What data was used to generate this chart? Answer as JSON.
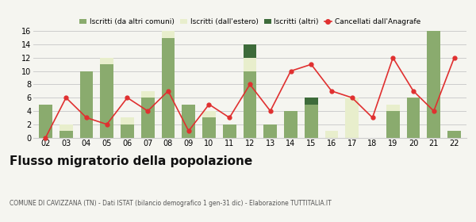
{
  "years": [
    "02",
    "03",
    "04",
    "05",
    "06",
    "07",
    "08",
    "09",
    "10",
    "11",
    "12",
    "13",
    "14",
    "15",
    "16",
    "17",
    "18",
    "19",
    "20",
    "21",
    "22"
  ],
  "iscritti_altri_comuni": [
    5,
    1,
    10,
    11,
    2,
    6,
    15,
    5,
    3,
    2,
    10,
    2,
    4,
    5,
    0,
    0,
    0,
    4,
    6,
    16,
    1
  ],
  "iscritti_estero": [
    0,
    1,
    0,
    1,
    1,
    1,
    1,
    0,
    1,
    0,
    2,
    0,
    0,
    0,
    1,
    6,
    0,
    1,
    0,
    0,
    0
  ],
  "iscritti_altri": [
    0,
    0,
    0,
    0,
    0,
    0,
    0,
    0,
    0,
    0,
    2,
    0,
    0,
    1,
    0,
    0,
    0,
    0,
    0,
    0,
    0
  ],
  "cancellati": [
    0,
    6,
    3,
    2,
    6,
    4,
    7,
    1,
    5,
    3,
    8,
    4,
    10,
    11,
    7,
    6,
    3,
    12,
    7,
    4,
    12
  ],
  "color_altri_comuni": "#8aab6e",
  "color_estero": "#e8eecc",
  "color_altri": "#3d6b3a",
  "color_cancellati": "#e03030",
  "title": "Flusso migratorio della popolazione",
  "subtitle": "COMUNE DI CAVIZZANA (TN) - Dati ISTAT (bilancio demografico 1 gen-31 dic) - Elaborazione TUTTITALIA.IT",
  "legend_labels": [
    "Iscritti (da altri comuni)",
    "Iscritti (dall'estero)",
    "Iscritti (altri)",
    "Cancellati dall'Anagrafe"
  ],
  "ylim": [
    0,
    16
  ],
  "yticks": [
    0,
    2,
    4,
    6,
    8,
    10,
    12,
    14,
    16
  ],
  "bg_color": "#f5f5f0",
  "grid_color": "#cccccc",
  "title_fontsize": 11,
  "subtitle_fontsize": 5.5,
  "tick_fontsize": 7
}
